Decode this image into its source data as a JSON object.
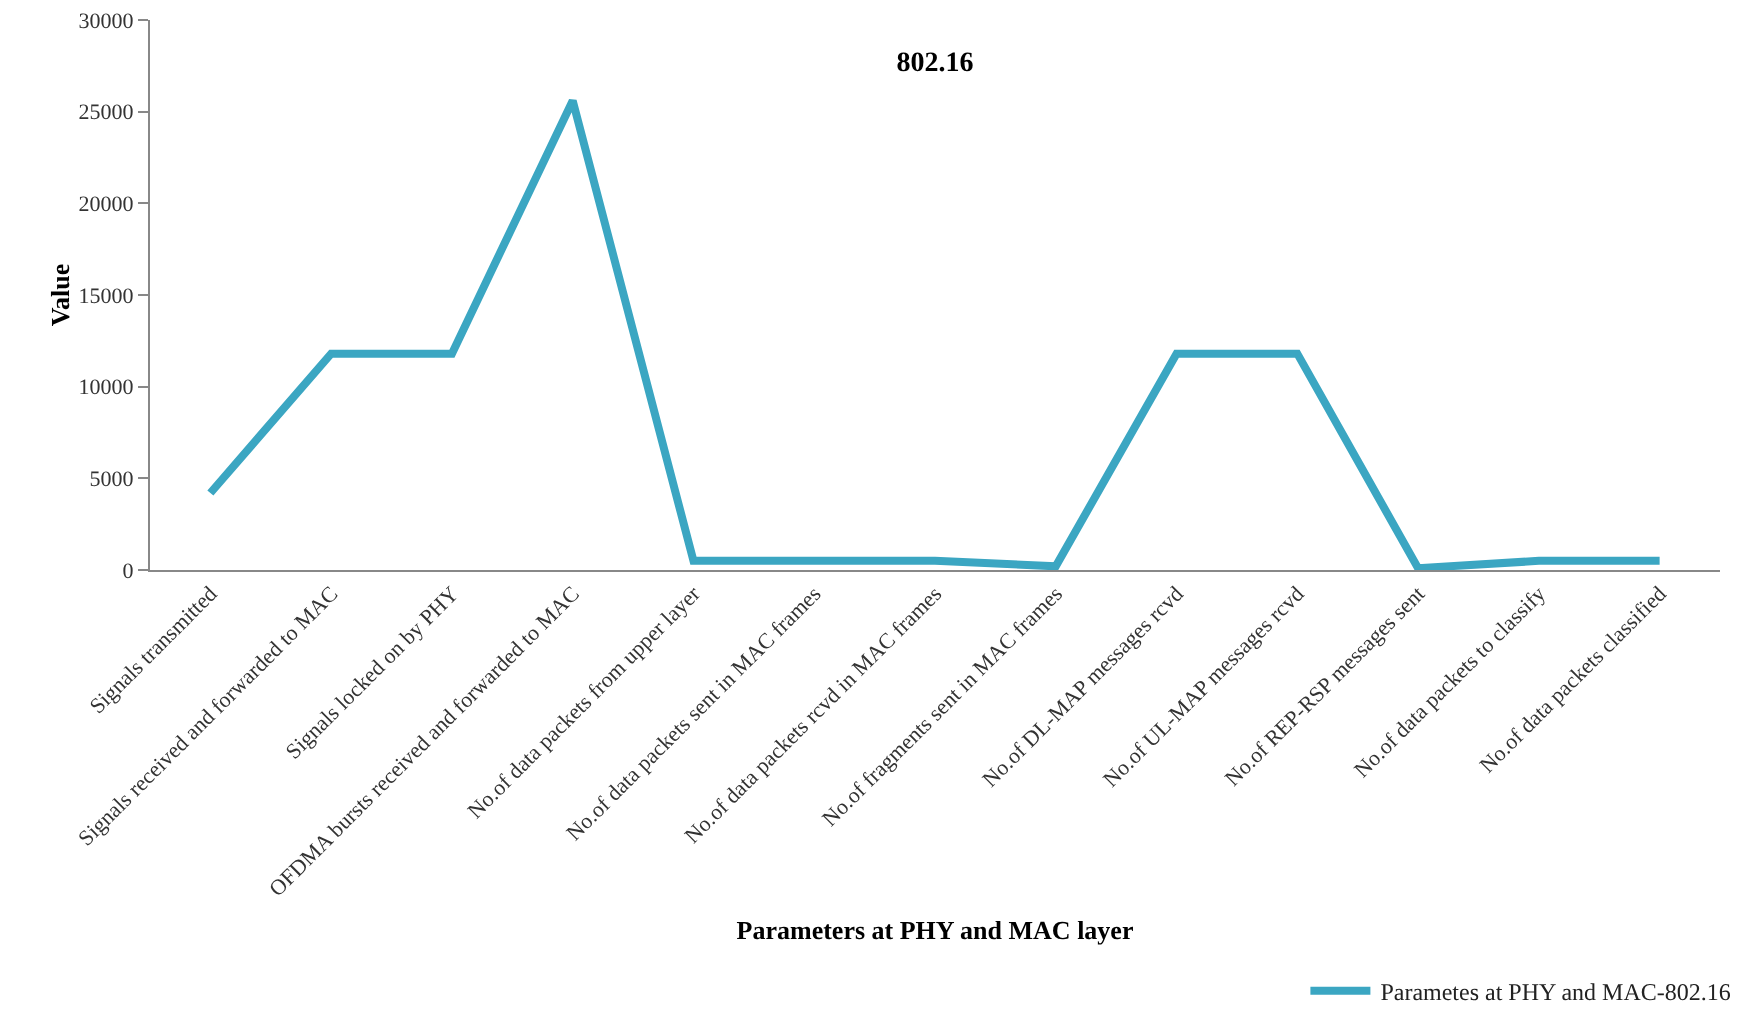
{
  "chart_data": {
    "type": "line",
    "title": "802.16",
    "xlabel": "Parameters at PHY and MAC layer",
    "ylabel": "Value",
    "categories": [
      "Signals transmitted",
      "Signals received and forwarded to MAC",
      "Signals locked on by PHY",
      "OFDMA bursts received and forwarded to MAC",
      "No.of data packets from upper layer",
      "No.of data packets sent in MAC frames",
      "No.of data packets rcvd in MAC frames",
      "No.of fragments sent in MAC frames",
      "No.of DL-MAP messages rcvd",
      "No.of UL-MAP messages rcvd",
      "No.of REP-RSP messages sent",
      "No.of data packets to classify",
      "No.of data packets classified"
    ],
    "series": [
      {
        "name": "Parametes at PHY and MAC-802.16",
        "color": "#3ba6c2",
        "values": [
          4200,
          11800,
          11800,
          25600,
          500,
          500,
          500,
          200,
          11800,
          11800,
          100,
          500,
          500
        ]
      }
    ],
    "ylim": [
      0,
      30000
    ],
    "yticks": [
      0,
      5000,
      10000,
      15000,
      20000,
      25000,
      30000
    ],
    "grid": false,
    "legend": "bottom right",
    "marker": "none",
    "line_style": "solid"
  }
}
